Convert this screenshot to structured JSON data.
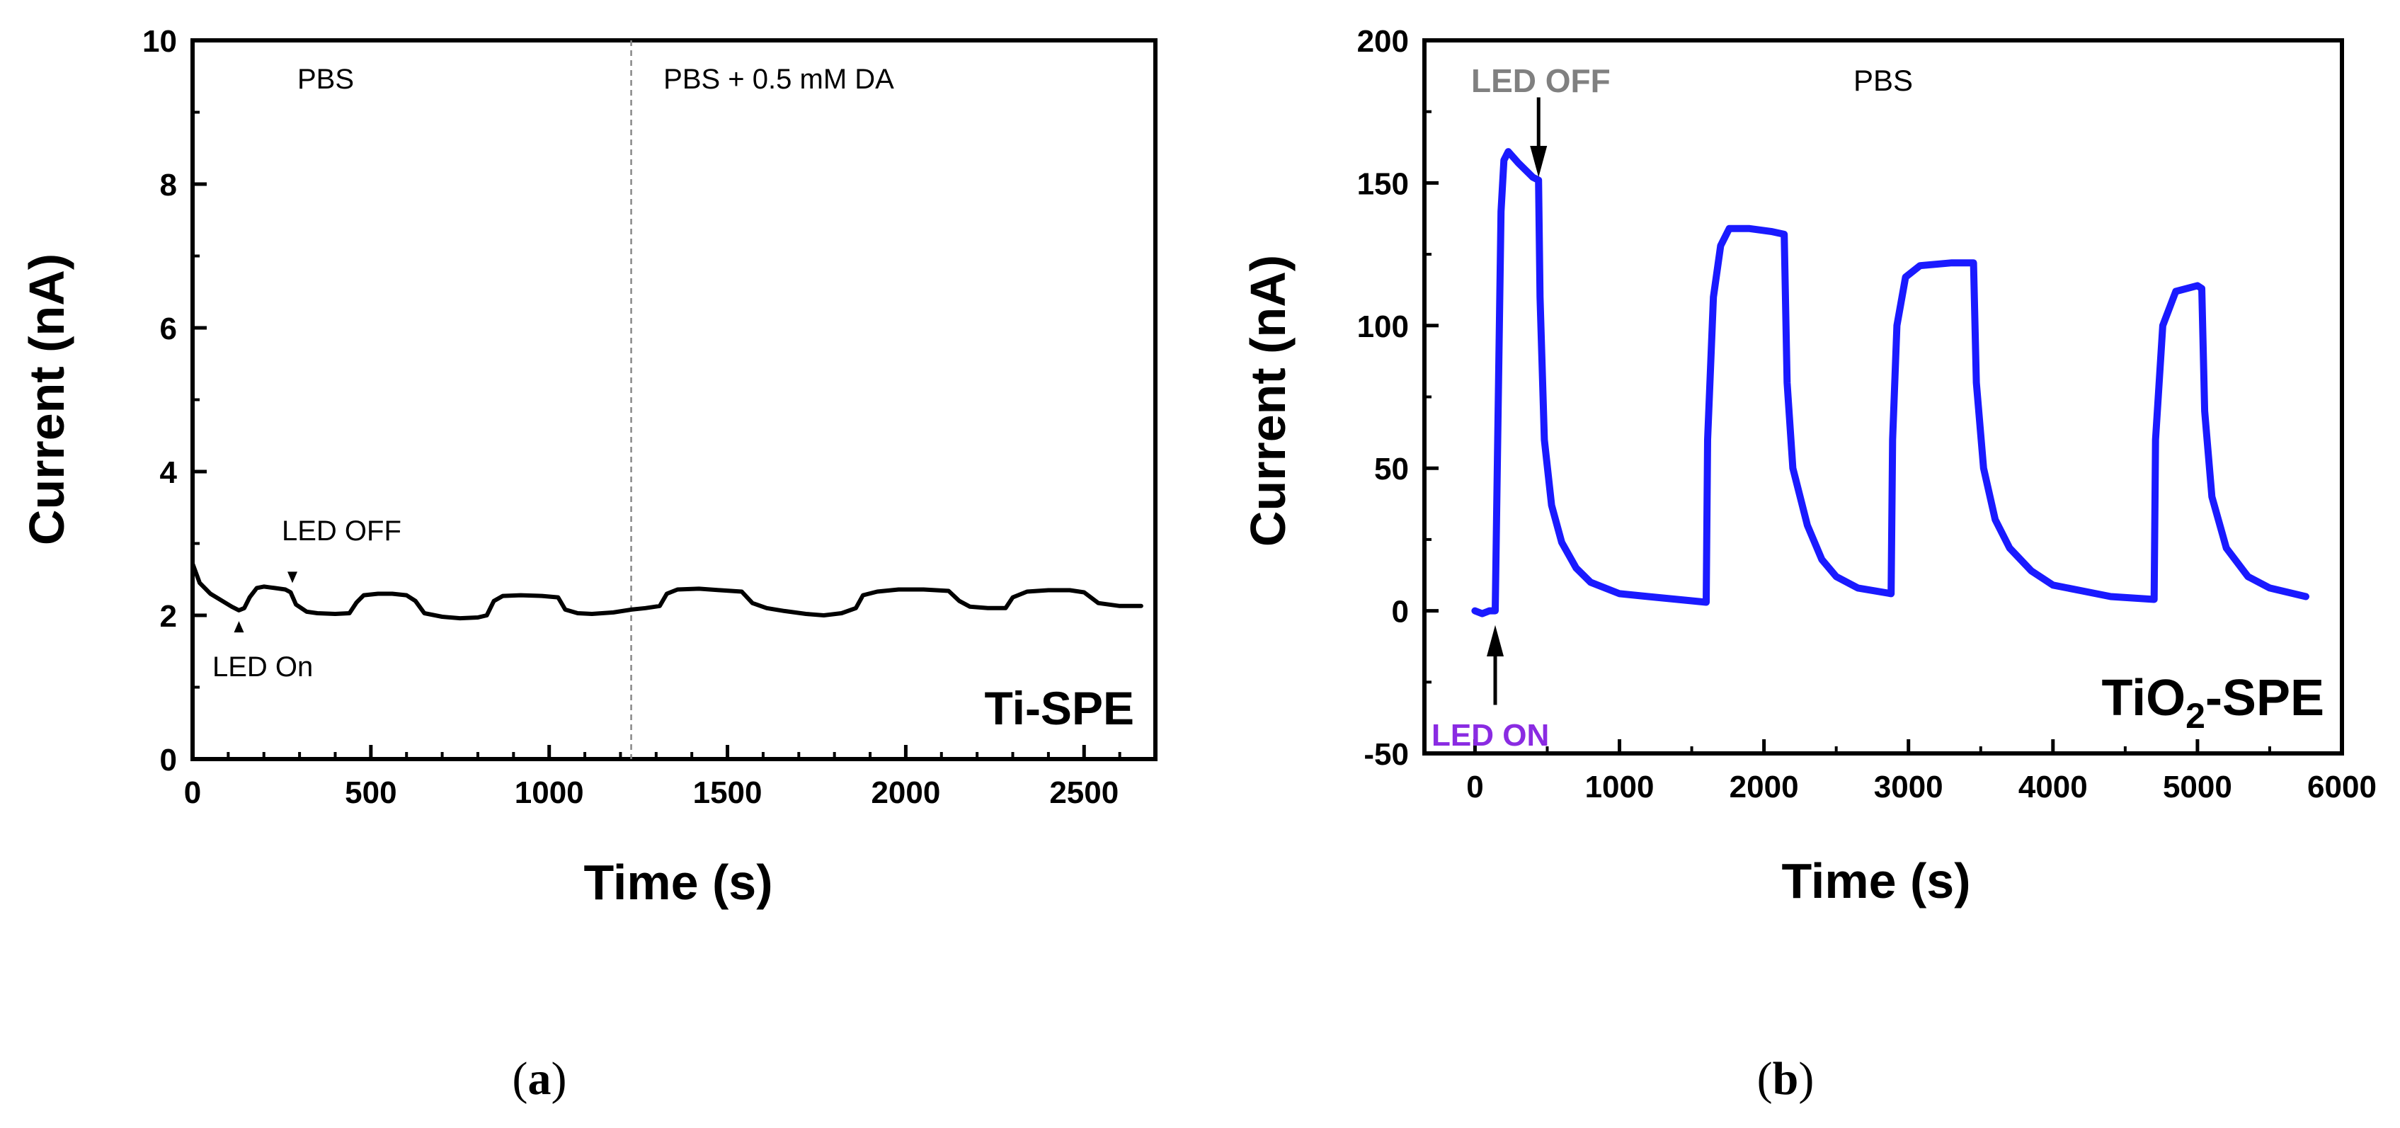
{
  "chart_data": [
    {
      "type": "line",
      "panel": "(a)",
      "xlabel": "Time (s)",
      "ylabel": "Current (nA)",
      "xlim": [
        0,
        2700
      ],
      "ylim": [
        0,
        10
      ],
      "x_ticks": [
        "0",
        "500",
        "1000",
        "1500",
        "2000",
        "2500"
      ],
      "y_ticks": [
        "0",
        "2",
        "4",
        "6",
        "8",
        "10"
      ],
      "grid": false,
      "legend": "none",
      "series": [
        {
          "color": "#000000",
          "points": [
            [
              0,
              2.72
            ],
            [
              20,
              2.45
            ],
            [
              50,
              2.3
            ],
            [
              90,
              2.18
            ],
            [
              110,
              2.12
            ],
            [
              130,
              2.07
            ],
            [
              145,
              2.1
            ],
            [
              160,
              2.25
            ],
            [
              180,
              2.38
            ],
            [
              200,
              2.4
            ],
            [
              230,
              2.38
            ],
            [
              260,
              2.36
            ],
            [
              275,
              2.32
            ],
            [
              290,
              2.15
            ],
            [
              320,
              2.05
            ],
            [
              350,
              2.03
            ],
            [
              400,
              2.02
            ],
            [
              440,
              2.03
            ],
            [
              460,
              2.18
            ],
            [
              480,
              2.28
            ],
            [
              520,
              2.3
            ],
            [
              560,
              2.3
            ],
            [
              600,
              2.28
            ],
            [
              625,
              2.2
            ],
            [
              650,
              2.03
            ],
            [
              700,
              1.98
            ],
            [
              750,
              1.96
            ],
            [
              800,
              1.97
            ],
            [
              825,
              2.0
            ],
            [
              845,
              2.2
            ],
            [
              870,
              2.27
            ],
            [
              920,
              2.28
            ],
            [
              980,
              2.27
            ],
            [
              1025,
              2.25
            ],
            [
              1045,
              2.08
            ],
            [
              1080,
              2.03
            ],
            [
              1120,
              2.02
            ],
            [
              1180,
              2.04
            ],
            [
              1230,
              2.08
            ],
            [
              1270,
              2.1
            ],
            [
              1310,
              2.13
            ],
            [
              1330,
              2.3
            ],
            [
              1360,
              2.36
            ],
            [
              1420,
              2.37
            ],
            [
              1480,
              2.35
            ],
            [
              1540,
              2.33
            ],
            [
              1570,
              2.17
            ],
            [
              1610,
              2.1
            ],
            [
              1660,
              2.06
            ],
            [
              1720,
              2.02
            ],
            [
              1770,
              2.0
            ],
            [
              1820,
              2.03
            ],
            [
              1860,
              2.1
            ],
            [
              1880,
              2.28
            ],
            [
              1920,
              2.33
            ],
            [
              1980,
              2.36
            ],
            [
              2050,
              2.36
            ],
            [
              2120,
              2.34
            ],
            [
              2150,
              2.2
            ],
            [
              2180,
              2.12
            ],
            [
              2230,
              2.1
            ],
            [
              2280,
              2.1
            ],
            [
              2300,
              2.25
            ],
            [
              2340,
              2.33
            ],
            [
              2400,
              2.35
            ],
            [
              2460,
              2.35
            ],
            [
              2500,
              2.32
            ],
            [
              2540,
              2.17
            ],
            [
              2600,
              2.13
            ],
            [
              2660,
              2.13
            ]
          ]
        }
      ],
      "divider_x": 1230,
      "annotations": {
        "pbs": "PBS",
        "pbs_da": "PBS + 0.5 mM DA",
        "led_off": "LED OFF",
        "led_on": "LED On",
        "electrode": "Ti-SPE",
        "led_on_x": 130,
        "led_off_x": 280
      }
    },
    {
      "type": "line",
      "panel": "(b)",
      "xlabel": "Time (s)",
      "ylabel": "Current (nA)",
      "xlim": [
        -350,
        6000
      ],
      "ylim": [
        -50,
        200
      ],
      "x_ticks": [
        "0",
        "1000",
        "2000",
        "3000",
        "4000",
        "5000",
        "6000"
      ],
      "y_ticks": [
        "-50",
        "0",
        "50",
        "100",
        "150",
        "200"
      ],
      "grid": false,
      "legend": "none",
      "series": [
        {
          "color": "#1a1aff",
          "points": [
            [
              0,
              0
            ],
            [
              50,
              -1
            ],
            [
              100,
              0
            ],
            [
              140,
              0
            ],
            [
              160,
              70
            ],
            [
              180,
              140
            ],
            [
              200,
              158
            ],
            [
              230,
              161
            ],
            [
              300,
              157
            ],
            [
              400,
              152
            ],
            [
              440,
              151
            ],
            [
              450,
              110
            ],
            [
              480,
              60
            ],
            [
              530,
              37
            ],
            [
              600,
              24
            ],
            [
              700,
              15
            ],
            [
              800,
              10
            ],
            [
              900,
              8
            ],
            [
              1000,
              6
            ],
            [
              1200,
              5
            ],
            [
              1400,
              4
            ],
            [
              1600,
              3
            ],
            [
              1610,
              60
            ],
            [
              1650,
              110
            ],
            [
              1700,
              128
            ],
            [
              1760,
              134
            ],
            [
              1900,
              134
            ],
            [
              2050,
              133
            ],
            [
              2140,
              132
            ],
            [
              2160,
              80
            ],
            [
              2200,
              50
            ],
            [
              2300,
              30
            ],
            [
              2400,
              18
            ],
            [
              2500,
              12
            ],
            [
              2650,
              8
            ],
            [
              2880,
              6
            ],
            [
              2890,
              60
            ],
            [
              2920,
              100
            ],
            [
              2980,
              117
            ],
            [
              3080,
              121
            ],
            [
              3300,
              122
            ],
            [
              3450,
              122
            ],
            [
              3470,
              80
            ],
            [
              3520,
              50
            ],
            [
              3600,
              32
            ],
            [
              3700,
              22
            ],
            [
              3850,
              14
            ],
            [
              4000,
              9
            ],
            [
              4200,
              7
            ],
            [
              4400,
              5
            ],
            [
              4700,
              4
            ],
            [
              4710,
              60
            ],
            [
              4760,
              100
            ],
            [
              4850,
              112
            ],
            [
              5000,
              114
            ],
            [
              5030,
              113
            ],
            [
              5050,
              70
            ],
            [
              5100,
              40
            ],
            [
              5200,
              22
            ],
            [
              5350,
              12
            ],
            [
              5500,
              8
            ],
            [
              5750,
              5
            ]
          ]
        }
      ],
      "annotations": {
        "led_off": "LED OFF",
        "pbs": "PBS",
        "led_on": "LED ON",
        "electrode_main": "TiO",
        "electrode_sub": "2",
        "electrode_suffix": "-SPE",
        "led_on_x": 140,
        "led_off_x": 440,
        "led_off_color": "#808080",
        "led_on_color": "#8a2be2"
      }
    }
  ],
  "panel_labels": {
    "a_open": "(",
    "a": "a",
    "a_close": ")",
    "b_open": "(",
    "b": "b",
    "b_close": ")"
  }
}
